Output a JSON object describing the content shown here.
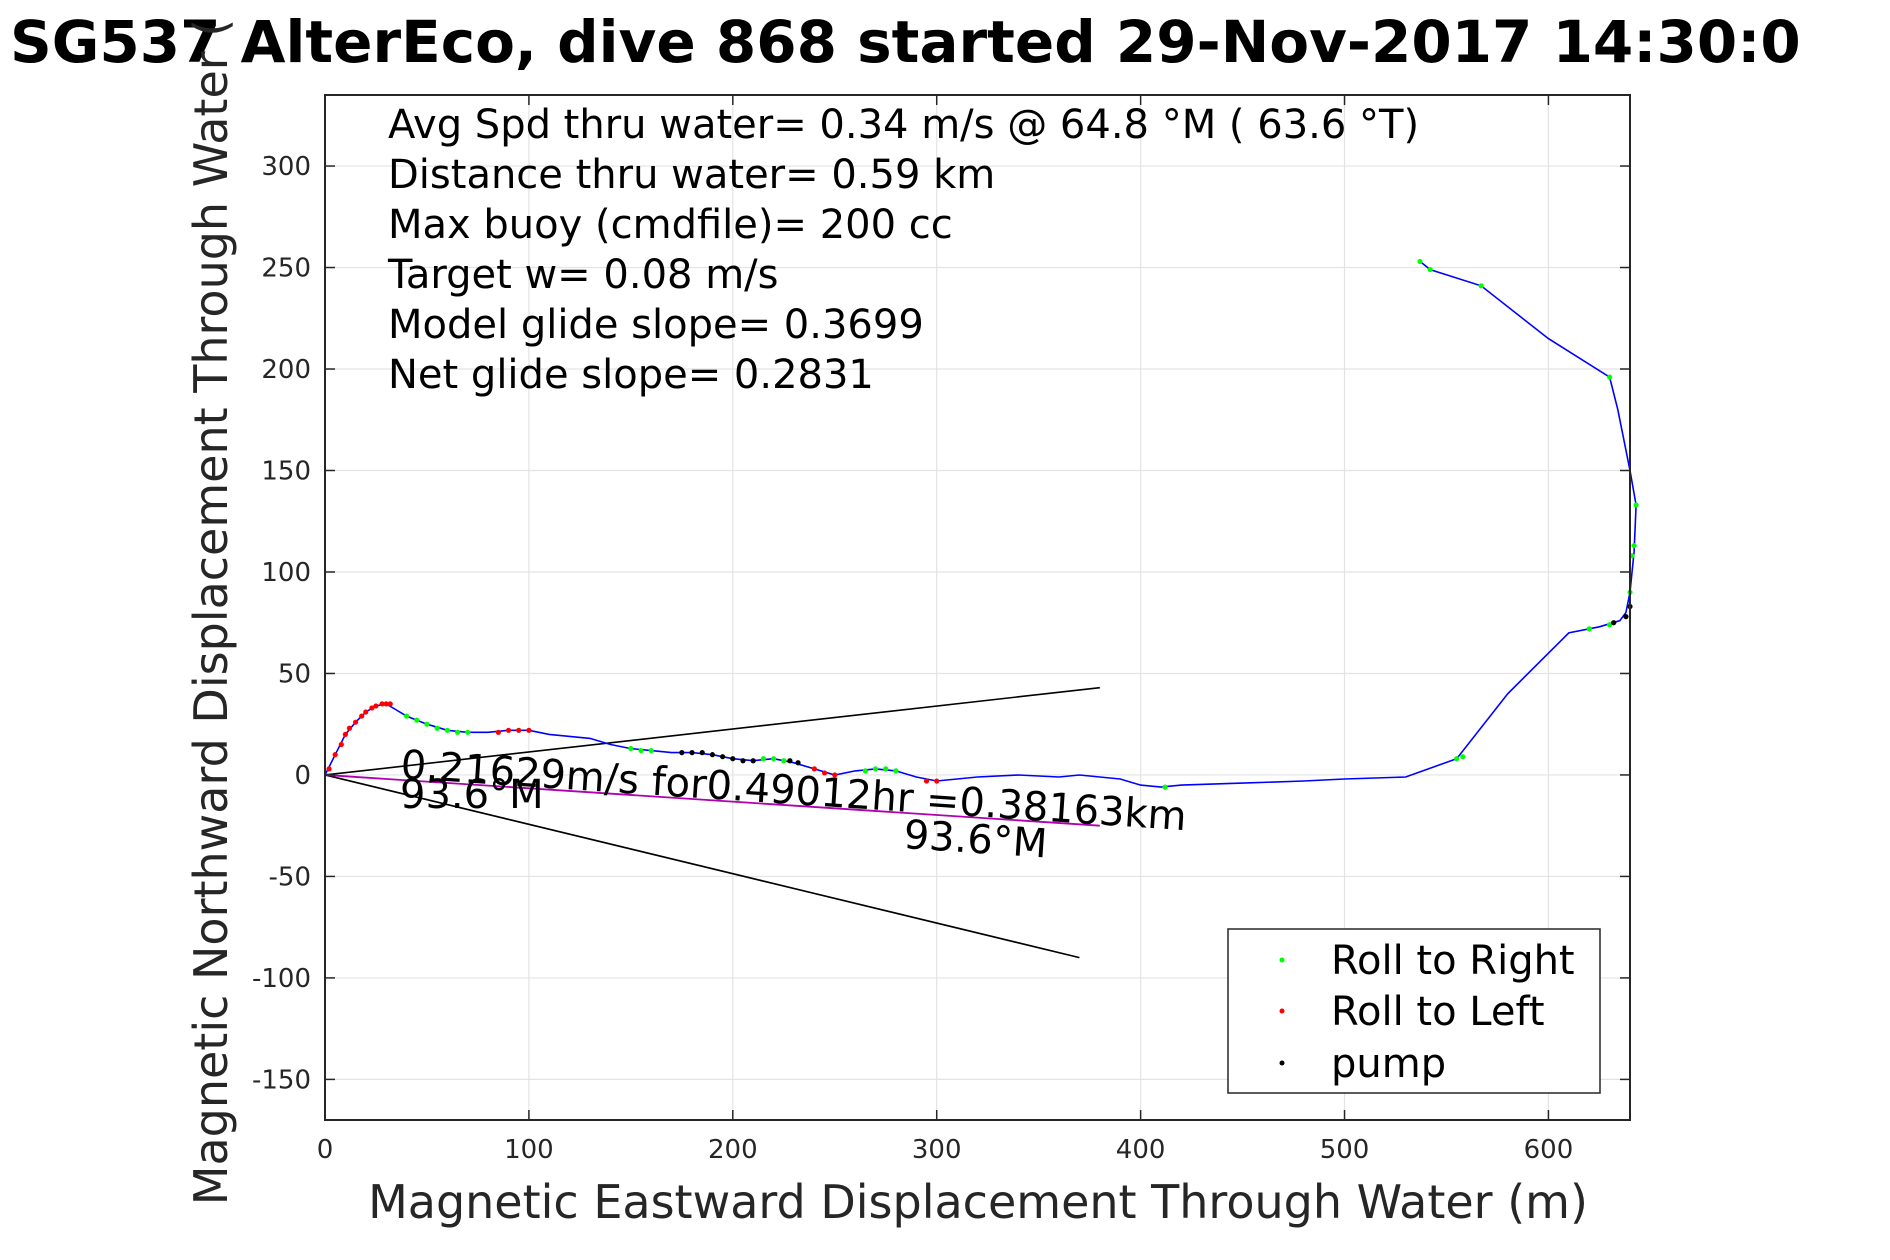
{
  "chart_data": {
    "type": "scatter",
    "title": "SG537 AlterEco, dive 868 started 29-Nov-2017 14:30:0",
    "xlabel": "Magnetic Eastward Displacement Through Water (m)",
    "ylabel": "Magnetic Northward Displacement Through Water (",
    "xlim": [
      0,
      640
    ],
    "ylim": [
      -170,
      335
    ],
    "xticks": [
      0,
      100,
      200,
      300,
      400,
      500,
      600
    ],
    "yticks": [
      -150,
      -100,
      -50,
      0,
      50,
      100,
      150,
      200,
      250,
      300
    ],
    "grid": true,
    "legend_position": "bottom-right",
    "info_lines": [
      "Avg Spd thru water=  0.34 m/s @  64.8 °M ( 63.6 °T)",
      "Distance thru water=  0.59 km",
      "Max buoy (cmdfile)= 200 cc",
      "Target w= 0.08 m/s",
      "Model glide slope= 0.3699",
      "Net glide slope= 0.2831"
    ],
    "annotations": {
      "current_text": "0.21629m/s for0.49012hr =0.38163km",
      "heading_near": "93.6°M",
      "heading_far": "93.6°M"
    },
    "track": [
      [
        0,
        0
      ],
      [
        5,
        10
      ],
      [
        10,
        20
      ],
      [
        15,
        26
      ],
      [
        20,
        31
      ],
      [
        25,
        34
      ],
      [
        30,
        35
      ],
      [
        35,
        32
      ],
      [
        40,
        29
      ],
      [
        50,
        25
      ],
      [
        60,
        22
      ],
      [
        70,
        21
      ],
      [
        80,
        21
      ],
      [
        90,
        22
      ],
      [
        100,
        22
      ],
      [
        110,
        20
      ],
      [
        120,
        19
      ],
      [
        130,
        18
      ],
      [
        140,
        15
      ],
      [
        150,
        13
      ],
      [
        160,
        12
      ],
      [
        170,
        11
      ],
      [
        180,
        11
      ],
      [
        190,
        10
      ],
      [
        200,
        8
      ],
      [
        210,
        7
      ],
      [
        220,
        8
      ],
      [
        230,
        6
      ],
      [
        240,
        3
      ],
      [
        250,
        0
      ],
      [
        260,
        2
      ],
      [
        270,
        3
      ],
      [
        280,
        2
      ],
      [
        290,
        -1
      ],
      [
        300,
        -3
      ],
      [
        310,
        -2
      ],
      [
        320,
        -1
      ],
      [
        340,
        0
      ],
      [
        360,
        -1
      ],
      [
        370,
        0
      ],
      [
        380,
        -1
      ],
      [
        390,
        -2
      ],
      [
        400,
        -5
      ],
      [
        410,
        -6
      ],
      [
        420,
        -5
      ],
      [
        450,
        -4
      ],
      [
        480,
        -3
      ],
      [
        500,
        -2
      ],
      [
        530,
        -1
      ],
      [
        555,
        8
      ],
      [
        580,
        40
      ],
      [
        610,
        70
      ],
      [
        625,
        73
      ],
      [
        635,
        76
      ],
      [
        638,
        80
      ],
      [
        640,
        90
      ],
      [
        642,
        110
      ],
      [
        643,
        133
      ],
      [
        640,
        150
      ],
      [
        634,
        180
      ],
      [
        630,
        196
      ],
      [
        600,
        215
      ],
      [
        567,
        241
      ],
      [
        542,
        249
      ],
      [
        537,
        253
      ]
    ],
    "series": [
      {
        "name": "Roll to Right",
        "color": "#00ff00",
        "points": [
          [
            40,
            29
          ],
          [
            45,
            27
          ],
          [
            50,
            25
          ],
          [
            55,
            23
          ],
          [
            60,
            22
          ],
          [
            65,
            21
          ],
          [
            70,
            21
          ],
          [
            150,
            13
          ],
          [
            155,
            12
          ],
          [
            160,
            12
          ],
          [
            215,
            8
          ],
          [
            220,
            8
          ],
          [
            225,
            7
          ],
          [
            265,
            2
          ],
          [
            270,
            3
          ],
          [
            275,
            3
          ],
          [
            280,
            2
          ],
          [
            412,
            -6
          ],
          [
            555,
            8
          ],
          [
            558,
            9
          ],
          [
            620,
            72
          ],
          [
            630,
            74
          ],
          [
            640,
            90
          ],
          [
            641,
            108
          ],
          [
            642,
            113
          ],
          [
            643,
            133
          ],
          [
            630,
            196
          ],
          [
            567,
            241
          ],
          [
            542,
            249
          ],
          [
            537,
            253
          ]
        ]
      },
      {
        "name": "Roll to Left",
        "color": "#ff0000",
        "points": [
          [
            2,
            3
          ],
          [
            5,
            10
          ],
          [
            8,
            15
          ],
          [
            10,
            20
          ],
          [
            12,
            23
          ],
          [
            15,
            26
          ],
          [
            18,
            29
          ],
          [
            20,
            31
          ],
          [
            23,
            33
          ],
          [
            25,
            34
          ],
          [
            28,
            35
          ],
          [
            30,
            35
          ],
          [
            32,
            35
          ],
          [
            85,
            21
          ],
          [
            90,
            22
          ],
          [
            95,
            22
          ],
          [
            100,
            22
          ],
          [
            240,
            3
          ],
          [
            245,
            1
          ],
          [
            250,
            0
          ],
          [
            295,
            -3
          ],
          [
            300,
            -3
          ]
        ]
      },
      {
        "name": "pump",
        "color": "#000000",
        "points": [
          [
            175,
            11
          ],
          [
            180,
            11
          ],
          [
            185,
            11
          ],
          [
            190,
            10
          ],
          [
            195,
            9
          ],
          [
            200,
            8
          ],
          [
            205,
            7
          ],
          [
            210,
            7
          ],
          [
            228,
            7
          ],
          [
            232,
            6
          ],
          [
            632,
            75
          ],
          [
            638,
            78
          ],
          [
            640,
            83
          ]
        ]
      }
    ],
    "current_line": [
      [
        0,
        0
      ],
      [
        380,
        -25
      ]
    ],
    "bound_lines": [
      [
        [
          0,
          0
        ],
        [
          380,
          43
        ]
      ],
      [
        [
          0,
          0
        ],
        [
          370,
          -90
        ]
      ]
    ]
  }
}
